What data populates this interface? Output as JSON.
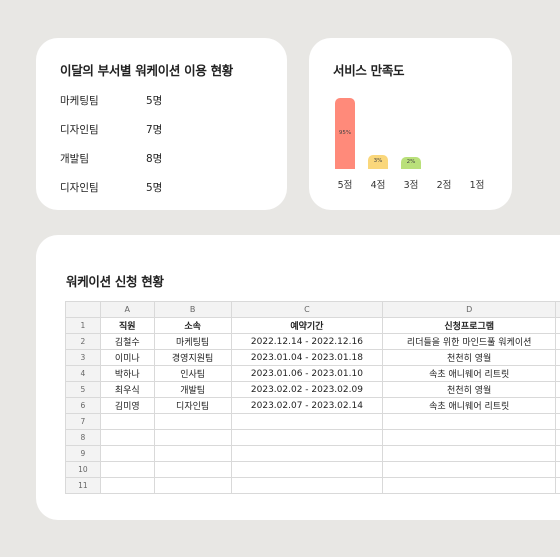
{
  "usage_card": {
    "title": "이달의 부서별 워케이션 이용 현황",
    "rows": [
      {
        "dept": "마케팅팀",
        "count": "5명"
      },
      {
        "dept": "디자인팀",
        "count": "7명"
      },
      {
        "dept": "개발팀",
        "count": "8명"
      },
      {
        "dept": "디자인팀",
        "count": "5명"
      }
    ]
  },
  "satisfaction_card": {
    "title": "서비스 만족도"
  },
  "chart_data": {
    "type": "bar",
    "title": "서비스 만족도",
    "categories": [
      "5점",
      "4점",
      "3점",
      "2점",
      "1점"
    ],
    "values": [
      95,
      3,
      2,
      0,
      0
    ],
    "data_labels": [
      "95%",
      "3%",
      "2%",
      "",
      ""
    ],
    "colors": [
      "#ff8a7a",
      "#fad77b",
      "#b9e07a",
      "#cccccc",
      "#cccccc"
    ],
    "ylim": [
      0,
      100
    ],
    "grid": false
  },
  "sheet_card": {
    "title": "워케이션 신청 현황",
    "columns": [
      "A",
      "B",
      "C",
      "D"
    ],
    "header": [
      "직원",
      "소속",
      "예약기간",
      "신청프로그램"
    ],
    "rows": [
      [
        "김철수",
        "마케팅팀",
        "2022.12.14 - 2022.12.16",
        "리더들을 위한 마인드풀 워케이션"
      ],
      [
        "이미나",
        "경영지원팀",
        "2023.01.04 - 2023.01.18",
        "천천히 영월"
      ],
      [
        "박하나",
        "인사팀",
        "2023.01.06 - 2023.01.10",
        "속초 애니웨어 리트릿"
      ],
      [
        "최우식",
        "개발팀",
        "2023.02.02 - 2023.02.09",
        "천천히 영월"
      ],
      [
        "김미영",
        "디자인팀",
        "2023.02.07 - 2023.02.14",
        "속초 애니웨어 리트릿"
      ]
    ],
    "row_numbers": [
      "1",
      "2",
      "3",
      "4",
      "5",
      "6",
      "7",
      "8",
      "9",
      "10",
      "11"
    ]
  }
}
